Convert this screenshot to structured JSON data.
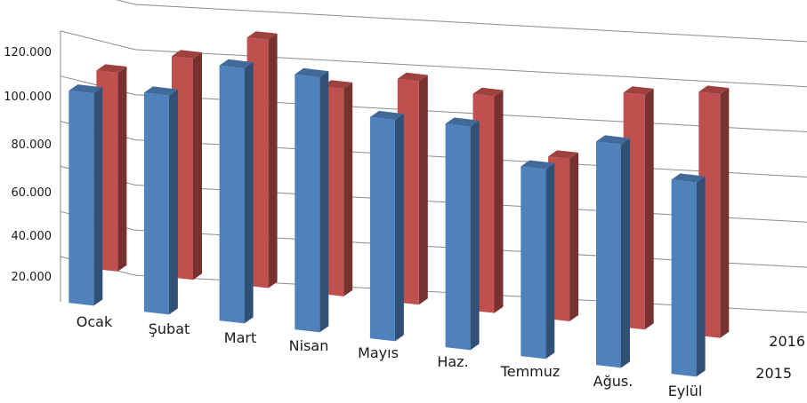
{
  "chart_data": {
    "type": "bar",
    "variant": "3d-clustered-column",
    "title": "",
    "xlabel": "",
    "ylabel": "",
    "categories": [
      "Ocak",
      "Şubat",
      "Mart",
      "Nisan",
      "Mayıs",
      "Haz.",
      "Temmuz",
      "Ağus.",
      "Eylül"
    ],
    "series": [
      {
        "name": "2015",
        "color": "#4f81bd",
        "values": [
          94000,
          97000,
          113000,
          113000,
          98000,
          99000,
          84000,
          99000,
          86000
        ]
      },
      {
        "name": "2016",
        "color": "#c0504d",
        "values": [
          88000,
          98000,
          110000,
          92000,
          99000,
          96000,
          72000,
          104000,
          108000
        ]
      }
    ],
    "y_ticks": [
      "20.000",
      "40.000",
      "60.000",
      "80.000",
      "100.000",
      "120.000"
    ],
    "ylim": [
      0,
      140000
    ],
    "grid": true,
    "legend": "none",
    "depth_axis_labels": [
      "2016",
      "2015"
    ]
  }
}
